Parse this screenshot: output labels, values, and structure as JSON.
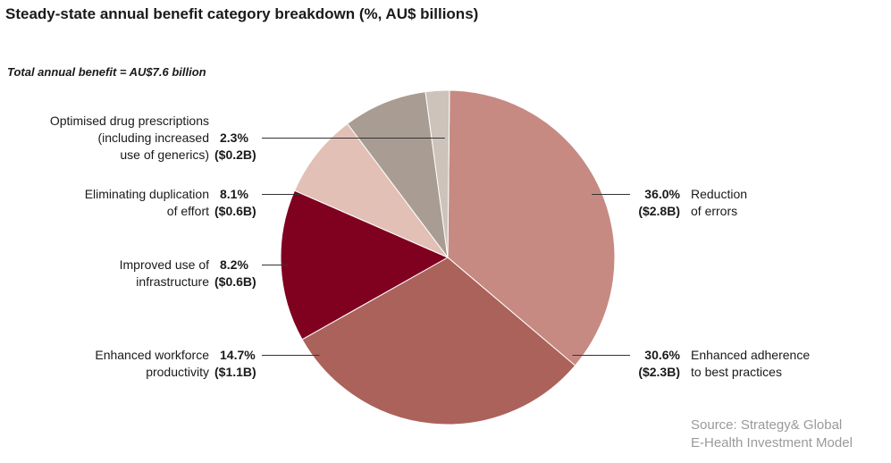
{
  "title": "Steady-state annual benefit category breakdown (%, AU$ billions)",
  "subtitle": "Total annual benefit = AU$7.6 billion",
  "source": {
    "line1": "Source: Strategy& Global",
    "line2": "E-Health Investment Model"
  },
  "chart_data": {
    "type": "pie",
    "title": "Steady-state annual benefit category breakdown (%, AU$ billions)",
    "subtitle": "Total annual benefit = AU$7.6 billion",
    "total_label": "AU$7.6 billion",
    "slices": [
      {
        "label": [
          "Reduction",
          "of errors"
        ],
        "percent": 36.0,
        "pct_label": "36.0%",
        "value_label": "($2.8B)",
        "value": 2.8,
        "color": "#c68a82"
      },
      {
        "label": [
          "Enhanced adherence",
          "to best practices"
        ],
        "percent": 30.6,
        "pct_label": "30.6%",
        "value_label": "($2.3B)",
        "value": 2.3,
        "color": "#ab625b"
      },
      {
        "label": [
          "Enhanced workforce",
          "productivity"
        ],
        "percent": 14.7,
        "pct_label": "14.7%",
        "value_label": "($1.1B)",
        "value": 1.1,
        "color": "#800020"
      },
      {
        "label": [
          "Improved use of",
          "infrastructure"
        ],
        "percent": 8.2,
        "pct_label": "8.2%",
        "value_label": "($0.6B)",
        "value": 0.6,
        "color": "#e2c0b6"
      },
      {
        "label": [
          "Eliminating duplication",
          "of effort"
        ],
        "percent": 8.1,
        "pct_label": "8.1%",
        "value_label": "($0.6B)",
        "value": 0.6,
        "color": "#a99c92"
      },
      {
        "label": [
          "Optimised drug prescriptions",
          "(including increased",
          "use of generics)"
        ],
        "percent": 2.3,
        "pct_label": "2.3%",
        "value_label": "($0.2B)",
        "value": 0.2,
        "color": "#cdc3bb"
      }
    ]
  }
}
